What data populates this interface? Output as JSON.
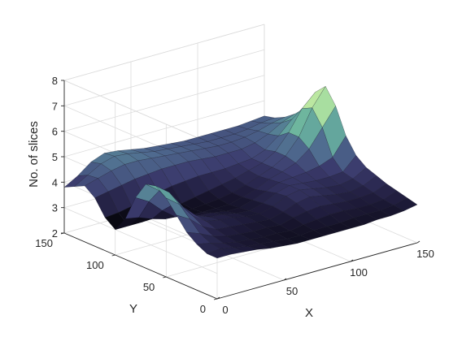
{
  "chart_data": {
    "type": "surface",
    "title": "",
    "xlabel": "X",
    "ylabel": "Y",
    "zlabel": "No. of slices",
    "xlim": [
      0,
      150
    ],
    "ylim": [
      0,
      150
    ],
    "zlim": [
      2,
      8
    ],
    "xticks": [
      "0",
      "50",
      "100",
      "150"
    ],
    "yticks": [
      "0",
      "50",
      "100",
      "150"
    ],
    "zticks": [
      "2",
      "3",
      "4",
      "5",
      "6",
      "7",
      "8"
    ],
    "grid": true,
    "colormap": [
      "#000000",
      "#1e1b3a",
      "#3b3b6d",
      "#4f6a8f",
      "#5f9f9c",
      "#79c8a0",
      "#b9e6a0",
      "#f2f9b6"
    ],
    "x": [
      0,
      10,
      20,
      30,
      40,
      50,
      60,
      70,
      80,
      90,
      100,
      110,
      120,
      130,
      140,
      150
    ],
    "y": [
      0,
      10,
      20,
      30,
      40,
      50,
      60,
      70,
      80,
      90,
      100,
      110,
      120,
      130,
      140,
      150
    ],
    "z": [
      [
        3.6,
        3.6,
        3.55,
        3.5,
        3.4,
        3.35,
        3.3,
        3.3,
        3.3,
        3.3,
        3.3,
        3.3,
        3.35,
        3.35,
        3.4,
        3.5
      ],
      [
        3.6,
        3.65,
        3.55,
        3.45,
        3.4,
        3.35,
        3.3,
        3.3,
        3.35,
        3.35,
        3.35,
        3.4,
        3.4,
        3.4,
        3.45,
        3.6
      ],
      [
        3.8,
        3.7,
        3.55,
        3.45,
        3.4,
        3.35,
        3.35,
        3.3,
        3.4,
        3.45,
        3.5,
        3.5,
        3.45,
        3.45,
        3.5,
        3.7
      ],
      [
        4.1,
        3.9,
        3.65,
        3.5,
        3.45,
        3.4,
        3.4,
        3.35,
        3.5,
        3.6,
        3.65,
        3.6,
        3.55,
        3.55,
        3.6,
        3.8
      ],
      [
        4.6,
        4.3,
        3.85,
        3.6,
        3.55,
        3.5,
        3.45,
        3.4,
        3.55,
        3.75,
        3.85,
        3.75,
        3.65,
        3.6,
        3.7,
        3.95
      ],
      [
        5.1,
        4.7,
        4.1,
        3.75,
        3.65,
        3.6,
        3.5,
        3.45,
        3.6,
        3.85,
        3.95,
        3.85,
        3.75,
        3.7,
        3.8,
        4.1
      ],
      [
        5.4,
        5.0,
        4.3,
        3.8,
        3.6,
        3.55,
        3.45,
        3.4,
        3.55,
        3.8,
        3.95,
        3.9,
        3.85,
        3.85,
        3.9,
        4.4
      ],
      [
        5.3,
        4.9,
        4.2,
        3.7,
        3.5,
        3.45,
        3.35,
        3.35,
        3.5,
        3.7,
        3.9,
        3.95,
        4.0,
        4.1,
        4.3,
        5.0
      ],
      [
        4.6,
        4.3,
        3.8,
        3.4,
        3.3,
        3.3,
        3.3,
        3.3,
        3.45,
        3.6,
        3.85,
        4.0,
        4.2,
        4.6,
        5.3,
        6.0
      ],
      [
        3.6,
        3.5,
        3.3,
        3.15,
        3.2,
        3.25,
        3.3,
        3.35,
        3.45,
        3.6,
        3.8,
        4.0,
        4.3,
        4.9,
        5.9,
        6.6
      ],
      [
        3.0,
        3.0,
        3.0,
        3.1,
        3.2,
        3.3,
        3.4,
        3.5,
        3.6,
        3.7,
        3.85,
        4.0,
        4.3,
        4.9,
        5.7,
        6.2
      ],
      [
        3.3,
        3.35,
        3.45,
        3.6,
        3.7,
        3.8,
        3.85,
        3.9,
        3.9,
        3.9,
        3.95,
        4.0,
        4.2,
        4.6,
        5.1,
        5.4
      ],
      [
        3.9,
        4.0,
        4.1,
        4.2,
        4.25,
        4.3,
        4.3,
        4.3,
        4.25,
        4.2,
        4.2,
        4.2,
        4.3,
        4.5,
        4.8,
        5.0
      ],
      [
        4.2,
        4.35,
        4.5,
        4.6,
        4.6,
        4.55,
        4.5,
        4.45,
        4.4,
        4.35,
        4.3,
        4.3,
        4.35,
        4.45,
        4.6,
        4.7
      ],
      [
        4.0,
        4.3,
        4.6,
        4.75,
        4.7,
        4.6,
        4.5,
        4.45,
        4.4,
        4.35,
        4.3,
        4.3,
        4.3,
        4.35,
        4.45,
        4.5
      ],
      [
        3.8,
        4.1,
        4.5,
        4.7,
        4.65,
        4.55,
        4.45,
        4.4,
        4.35,
        4.3,
        4.3,
        4.3,
        4.3,
        4.3,
        4.35,
        4.4
      ]
    ]
  }
}
